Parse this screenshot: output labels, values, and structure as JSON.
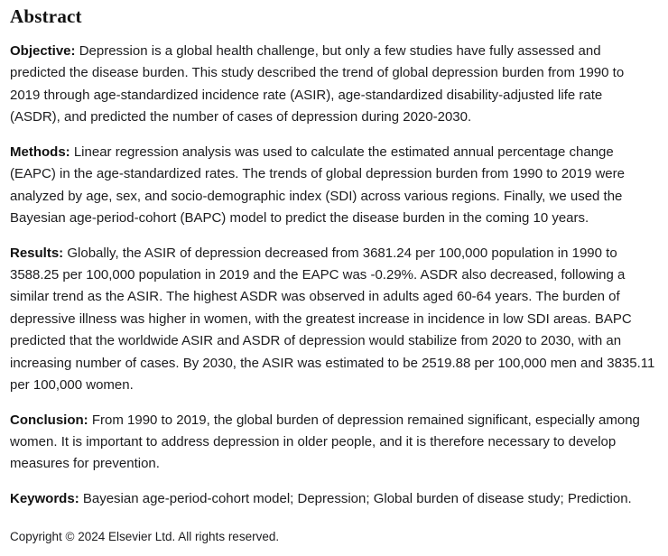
{
  "heading": "Abstract",
  "sections": {
    "objective": {
      "label": "Objective:",
      "text": "Depression is a global health challenge, but only a few studies have fully assessed and predicted the disease burden. This study described the trend of global depression burden from 1990 to 2019 through age-standardized incidence rate (ASIR), age-standardized disability-adjusted life rate (ASDR), and predicted the number of cases of depression during 2020-2030."
    },
    "methods": {
      "label": "Methods:",
      "text": "Linear regression analysis was used to calculate the estimated annual percentage change (EAPC) in the age-standardized rates. The trends of global depression burden from 1990 to 2019 were analyzed by age, sex, and socio-demographic index (SDI) across various regions. Finally, we used the Bayesian age-period-cohort (BAPC) model to predict the disease burden in the coming 10 years."
    },
    "results": {
      "label": "Results:",
      "text": "Globally, the ASIR of depression decreased from 3681.24 per 100,000 population in 1990 to 3588.25 per 100,000 population in 2019 and the EAPC was -0.29%. ASDR also decreased, following a similar trend as the ASIR. The highest ASDR was observed in adults aged 60-64 years. The burden of depressive illness was higher in women, with the greatest increase in incidence in low SDI areas. BAPC predicted that the worldwide ASIR and ASDR of depression would stabilize from 2020 to 2030, with an increasing number of cases. By 2030, the ASIR was estimated to be 2519.88 per 100,000 men and 3835.11 per 100,000 women."
    },
    "conclusion": {
      "label": "Conclusion:",
      "text": "From 1990 to 2019, the global burden of depression remained significant, especially among women. It is important to address depression in older people, and it is therefore necessary to develop measures for prevention."
    },
    "keywords": {
      "label": "Keywords:",
      "text": "Bayesian age-period-cohort model; Depression; Global burden of disease study; Prediction."
    }
  },
  "copyright": "Copyright © 2024 Elsevier Ltd. All rights reserved."
}
